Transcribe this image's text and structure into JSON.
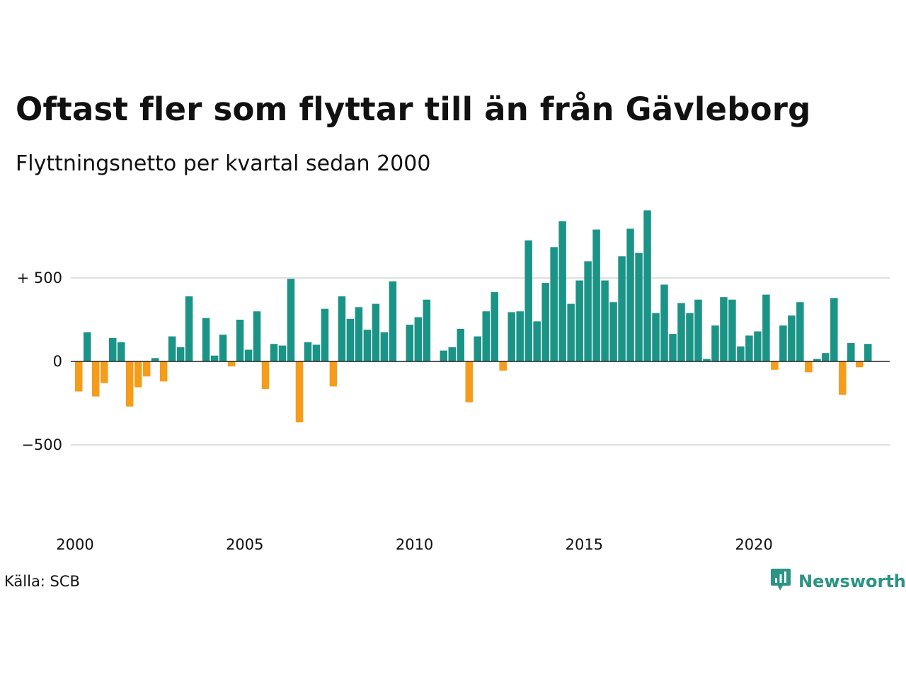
{
  "title": "Oftast fler som flyttar till än från Gävleborg",
  "subtitle": "Flyttningsnetto per kvartal sedan 2000",
  "source": "Källa: SCB",
  "brand": {
    "name": "Newsworthy",
    "icon": "newsworthy-logo-icon",
    "color": "#2a9485"
  },
  "colors": {
    "positive": "#1a9486",
    "negative": "#f59c1b",
    "grid": "#e0e0e0",
    "zero": "#222222"
  },
  "chart_data": {
    "type": "bar",
    "title": "Oftast fler som flyttar till än från Gävleborg",
    "subtitle": "Flyttningsnetto per kvartal sedan 2000",
    "xlabel": "",
    "ylabel": "",
    "x_ticks": [
      "2000",
      "2005",
      "2010",
      "2020",
      "2015"
    ],
    "x_tick_values": [
      2000,
      2005,
      2010,
      2020,
      2015
    ],
    "y_ticks": [
      {
        "value": 500,
        "label": "+ 500"
      },
      {
        "value": 0,
        "label": "0"
      },
      {
        "value": -500,
        "label": "−500"
      }
    ],
    "ylim": [
      -900,
      950
    ],
    "xlim": [
      2000,
      2023.75
    ],
    "grid": true,
    "categories": [
      "2000 Q1",
      "2000 Q2",
      "2000 Q3",
      "2000 Q4",
      "2001 Q1",
      "2001 Q2",
      "2001 Q3",
      "2001 Q4",
      "2002 Q1",
      "2002 Q2",
      "2002 Q3",
      "2002 Q4",
      "2003 Q1",
      "2003 Q2",
      "2003 Q3",
      "2003 Q4",
      "2004 Q1",
      "2004 Q2",
      "2004 Q3",
      "2004 Q4",
      "2005 Q1",
      "2005 Q2",
      "2005 Q3",
      "2005 Q4",
      "2006 Q1",
      "2006 Q2",
      "2006 Q3",
      "2006 Q4",
      "2007 Q1",
      "2007 Q2",
      "2007 Q3",
      "2007 Q4",
      "2008 Q1",
      "2008 Q2",
      "2008 Q3",
      "2008 Q4",
      "2009 Q1",
      "2009 Q2",
      "2009 Q3",
      "2009 Q4",
      "2010 Q1",
      "2010 Q2",
      "2010 Q3",
      "2010 Q4",
      "2011 Q1",
      "2011 Q2",
      "2011 Q3",
      "2011 Q4",
      "2012 Q1",
      "2012 Q2",
      "2012 Q3",
      "2012 Q4",
      "2013 Q1",
      "2013 Q2",
      "2013 Q3",
      "2013 Q4",
      "2014 Q1",
      "2014 Q2",
      "2014 Q3",
      "2014 Q4",
      "2015 Q1",
      "2015 Q2",
      "2015 Q3",
      "2015 Q4",
      "2016 Q1",
      "2016 Q2",
      "2016 Q3",
      "2016 Q4",
      "2017 Q1",
      "2017 Q2",
      "2017 Q3",
      "2017 Q4",
      "2018 Q1",
      "2018 Q2",
      "2018 Q3",
      "2018 Q4",
      "2019 Q1",
      "2019 Q2",
      "2019 Q3",
      "2019 Q4",
      "2020 Q1",
      "2020 Q2",
      "2020 Q3",
      "2020 Q4",
      "2021 Q1",
      "2021 Q2",
      "2021 Q3",
      "2021 Q4",
      "2022 Q1",
      "2022 Q2",
      "2022 Q3",
      "2022 Q4",
      "2023 Q1",
      "2023 Q2",
      "2023 Q3",
      "2023 Q4"
    ],
    "values": [
      -180,
      175,
      -210,
      -130,
      140,
      115,
      -270,
      -155,
      -90,
      20,
      -120,
      150,
      85,
      390,
      0,
      260,
      35,
      160,
      -30,
      250,
      70,
      300,
      -165,
      105,
      95,
      495,
      -365,
      115,
      100,
      315,
      -150,
      390,
      255,
      325,
      190,
      345,
      175,
      480,
      0,
      220,
      265,
      370,
      0,
      65,
      85,
      195,
      -245,
      150,
      300,
      415,
      -55,
      295,
      300,
      725,
      240,
      470,
      685,
      840,
      345,
      485,
      600,
      790,
      485,
      355,
      630,
      795,
      650,
      905,
      290,
      460,
      165,
      350,
      290,
      370,
      15,
      215,
      385,
      370,
      90,
      155,
      180,
      400,
      -50,
      215,
      275,
      355,
      -65,
      15,
      50,
      380,
      -200,
      110,
      -35,
      105,
      0,
      0
    ]
  }
}
